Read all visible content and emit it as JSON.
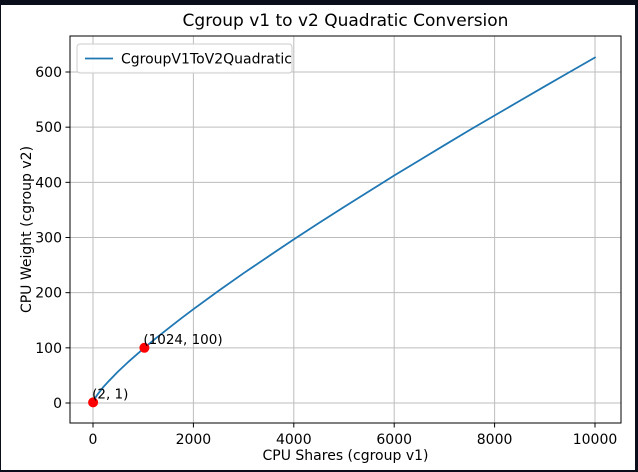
{
  "chart_data": {
    "type": "line",
    "title": "Cgroup v1 to v2 Quadratic Conversion",
    "xlabel": "CPU Shares (cgroup v1)",
    "ylabel": "CPU Weight (cgroup v2)",
    "legend": [
      "CgroupV1ToV2Quadratic"
    ],
    "legend_position": "upper left",
    "grid": true,
    "xlim": [
      -500,
      10520
    ],
    "ylim": [
      -36,
      666
    ],
    "x_ticks": [
      0,
      2000,
      4000,
      6000,
      8000,
      10000
    ],
    "x_tick_labels": [
      "0",
      "2000",
      "4000",
      "6000",
      "8000",
      "10000"
    ],
    "y_ticks": [
      0,
      100,
      200,
      300,
      400,
      500,
      600
    ],
    "y_tick_labels": [
      "0",
      "100",
      "200",
      "300",
      "400",
      "500",
      "600"
    ],
    "series": [
      {
        "name": "CgroupV1ToV2Quadratic",
        "color": "#1f77b4",
        "points": [
          [
            2,
            1
          ],
          [
            50,
            10
          ],
          [
            100,
            16.7
          ],
          [
            200,
            28.2
          ],
          [
            300,
            38.5
          ],
          [
            500,
            57.1
          ],
          [
            700,
            74.2
          ],
          [
            1024,
            100
          ],
          [
            1250,
            117.2
          ],
          [
            1500,
            135.2
          ],
          [
            1750,
            152.8
          ],
          [
            2000,
            170
          ],
          [
            2500,
            203.2
          ],
          [
            3000,
            235.2
          ],
          [
            3500,
            266.1
          ],
          [
            4000,
            296.5
          ],
          [
            4500,
            326.2
          ],
          [
            5000,
            355.3
          ],
          [
            5500,
            383.9
          ],
          [
            6000,
            412.3
          ],
          [
            6500,
            439.7
          ],
          [
            7000,
            467.4
          ],
          [
            7500,
            494.6
          ],
          [
            8000,
            521.1
          ],
          [
            8500,
            547.7
          ],
          [
            9000,
            574.1
          ],
          [
            9500,
            600.2
          ],
          [
            10000,
            626.3
          ]
        ]
      }
    ],
    "markers": [
      {
        "x": 2,
        "y": 1,
        "label": "(2, 1)",
        "color": "#ff0000"
      },
      {
        "x": 1024,
        "y": 100,
        "label": "(1024, 100)",
        "color": "#ff0000"
      }
    ]
  },
  "colors": {
    "line": "#1f77b4",
    "marker": "#ff0000",
    "grid": "#bdbdbd",
    "text": "#000000",
    "frame": "#000000",
    "legend_border": "#cccccc",
    "screen_edge": "#0a0e1b",
    "background": "#ffffff"
  }
}
